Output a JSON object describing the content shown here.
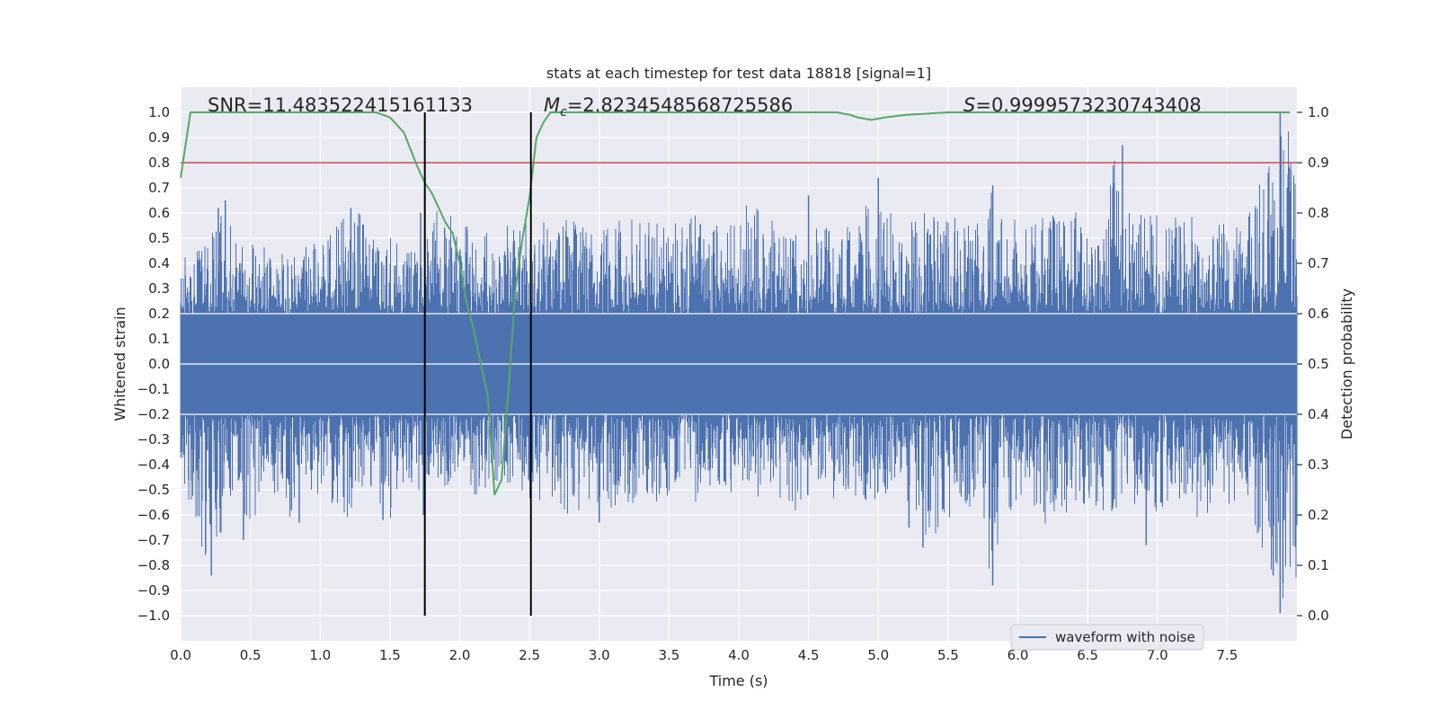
{
  "chart_data": {
    "type": "line",
    "title": "stats at each timestep for test data 18818 [signal=1]",
    "xlabel": "Time (s)",
    "ylabel": "Whitened strain",
    "ylabel_right": "Detection probability",
    "xlim": [
      0.0,
      8.0
    ],
    "ylim": [
      -1.1,
      1.1
    ],
    "ylim_right": [
      -0.05,
      1.05
    ],
    "x_ticks": [
      "0.0",
      "0.5",
      "1.0",
      "1.5",
      "2.0",
      "2.5",
      "3.0",
      "3.5",
      "4.0",
      "4.5",
      "5.0",
      "5.5",
      "6.0",
      "6.5",
      "7.0",
      "7.5"
    ],
    "y_ticks": [
      "1.0",
      "0.9",
      "0.8",
      "0.7",
      "0.6",
      "0.5",
      "0.4",
      "0.3",
      "0.2",
      "0.1",
      "0.0",
      "−0.1",
      "−0.2",
      "−0.3",
      "−0.4",
      "−0.5",
      "−0.6",
      "−0.7",
      "−0.8",
      "−0.9",
      "−1.0"
    ],
    "y_ticks_right": [
      "1.0",
      "0.9",
      "0.8",
      "0.7",
      "0.6",
      "0.5",
      "0.4",
      "0.3",
      "0.2",
      "0.1",
      "0.0"
    ],
    "grid": true,
    "legend_position": "bottom-right",
    "annotations": {
      "snr": "SNR=11.483522415161133",
      "mc_symbol": "M",
      "mc_sub": "c",
      "mc_value": "=2.8234548568725586",
      "s_symbol": "S",
      "s_value": "=0.9999573230743408"
    },
    "series": [
      {
        "name": "waveform with noise",
        "color": "#4c72b0",
        "axis": "left",
        "envelope_x": [
          0.0,
          0.1,
          0.2,
          0.3,
          0.4,
          0.5,
          0.6,
          0.7,
          0.8,
          0.9,
          1.0,
          1.1,
          1.2,
          1.3,
          1.4,
          1.5,
          1.6,
          1.7,
          1.8,
          1.9,
          2.0,
          2.1,
          2.2,
          2.3,
          2.4,
          2.5,
          2.6,
          2.7,
          2.8,
          2.9,
          3.0,
          3.1,
          3.2,
          3.3,
          3.4,
          3.5,
          3.6,
          3.7,
          3.8,
          3.9,
          4.0,
          4.1,
          4.2,
          4.3,
          4.4,
          4.5,
          4.6,
          4.7,
          4.8,
          4.9,
          5.0,
          5.1,
          5.2,
          5.3,
          5.4,
          5.5,
          5.6,
          5.7,
          5.8,
          5.9,
          6.0,
          6.1,
          6.2,
          6.3,
          6.4,
          6.5,
          6.6,
          6.7,
          6.8,
          6.9,
          7.0,
          7.1,
          7.2,
          7.3,
          7.4,
          7.5,
          7.6,
          7.7,
          7.8,
          7.9
        ],
        "envelope_max": [
          0.43,
          0.45,
          0.5,
          0.65,
          0.48,
          0.52,
          0.5,
          0.45,
          0.42,
          0.47,
          0.5,
          0.55,
          0.61,
          0.62,
          0.5,
          0.52,
          0.45,
          0.6,
          0.62,
          0.6,
          0.58,
          0.62,
          0.55,
          0.55,
          0.6,
          0.6,
          0.58,
          0.62,
          0.58,
          0.55,
          0.6,
          0.56,
          0.6,
          0.56,
          0.62,
          0.58,
          0.55,
          0.62,
          0.56,
          0.6,
          0.62,
          0.66,
          0.58,
          0.6,
          0.62,
          0.52,
          0.6,
          0.55,
          0.58,
          0.62,
          0.74,
          0.6,
          0.58,
          0.6,
          0.62,
          0.58,
          0.62,
          0.56,
          0.71,
          0.6,
          0.62,
          0.58,
          0.68,
          0.62,
          0.66,
          0.55,
          0.6,
          0.87,
          0.6,
          0.62,
          0.6,
          0.58,
          0.62,
          0.6,
          0.62,
          0.55,
          0.6,
          0.66,
          0.85,
          1.0
        ],
        "envelope_min": [
          -0.45,
          -0.68,
          -0.84,
          -0.66,
          -0.58,
          -0.64,
          -0.55,
          -0.52,
          -0.63,
          -0.55,
          -0.52,
          -0.56,
          -0.62,
          -0.5,
          -0.55,
          -0.62,
          -0.48,
          -0.56,
          -0.5,
          -0.52,
          -0.5,
          -0.55,
          -0.5,
          -0.45,
          -0.5,
          -0.55,
          -0.58,
          -0.63,
          -0.62,
          -0.55,
          -0.62,
          -0.6,
          -0.58,
          -0.55,
          -0.6,
          -0.55,
          -0.52,
          -0.58,
          -0.5,
          -0.55,
          -0.52,
          -0.55,
          -0.5,
          -0.55,
          -0.61,
          -0.52,
          -0.5,
          -0.55,
          -0.5,
          -0.58,
          -0.55,
          -0.5,
          -0.55,
          -0.65,
          -0.72,
          -0.62,
          -0.58,
          -0.65,
          -0.88,
          -0.62,
          -0.6,
          -0.55,
          -0.66,
          -0.58,
          -0.62,
          -0.55,
          -0.6,
          -0.62,
          -0.58,
          -0.55,
          -0.6,
          -0.58,
          -0.55,
          -0.62,
          -0.58,
          -0.55,
          -0.6,
          -0.65,
          -0.87,
          -0.99
        ],
        "spikes": [
          [
            0.22,
            -0.84
          ],
          [
            0.27,
            0.62
          ],
          [
            0.32,
            0.65
          ],
          [
            0.45,
            -0.7
          ],
          [
            0.85,
            -0.63
          ],
          [
            1.22,
            0.62
          ],
          [
            1.45,
            -0.62
          ],
          [
            1.72,
            0.6
          ],
          [
            1.74,
            -0.6
          ],
          [
            3.0,
            -0.63
          ],
          [
            4.5,
            0.67
          ],
          [
            5.0,
            0.74
          ],
          [
            5.22,
            -0.65
          ],
          [
            5.32,
            -0.73
          ],
          [
            5.82,
            0.71
          ],
          [
            5.82,
            -0.88
          ],
          [
            6.75,
            0.87
          ],
          [
            6.92,
            -0.72
          ],
          [
            7.83,
            -0.84
          ],
          [
            7.88,
            1.0
          ],
          [
            7.88,
            -0.99
          ],
          [
            7.9,
            -0.87
          ]
        ]
      },
      {
        "name": "",
        "color": "#55a868",
        "axis": "right",
        "x": [
          0.0,
          0.07,
          0.2,
          0.5,
          1.0,
          1.4,
          1.5,
          1.6,
          1.7,
          1.75,
          1.8,
          1.9,
          1.95,
          2.0,
          2.05,
          2.1,
          2.15,
          2.2,
          2.25,
          2.3,
          2.35,
          2.4,
          2.45,
          2.5,
          2.55,
          2.6,
          2.65,
          2.7,
          3.0,
          4.0,
          4.5,
          4.7,
          4.8,
          4.85,
          4.95,
          5.05,
          5.2,
          5.5,
          7.0,
          7.95
        ],
        "y": [
          0.87,
          1.0,
          1.0,
          1.0,
          1.0,
          1.0,
          0.99,
          0.96,
          0.89,
          0.86,
          0.84,
          0.78,
          0.76,
          0.7,
          0.62,
          0.57,
          0.5,
          0.44,
          0.24,
          0.27,
          0.45,
          0.65,
          0.75,
          0.83,
          0.95,
          0.98,
          1.0,
          1.0,
          1.0,
          1.0,
          1.0,
          1.0,
          0.995,
          0.99,
          0.985,
          0.99,
          0.995,
          1.0,
          1.0,
          1.0
        ]
      }
    ],
    "threshold_line": {
      "axis": "right",
      "value": 0.9,
      "color": "#c44e52"
    },
    "vertical_lines": [
      {
        "x": 1.75,
        "color": "#000000"
      },
      {
        "x": 2.51,
        "color": "#000000"
      }
    ],
    "vertical_line_range": [
      -1.0,
      1.0
    ],
    "colors": {
      "background": "#eaeaf2",
      "grid": "#ffffff",
      "text": "#262626"
    }
  }
}
